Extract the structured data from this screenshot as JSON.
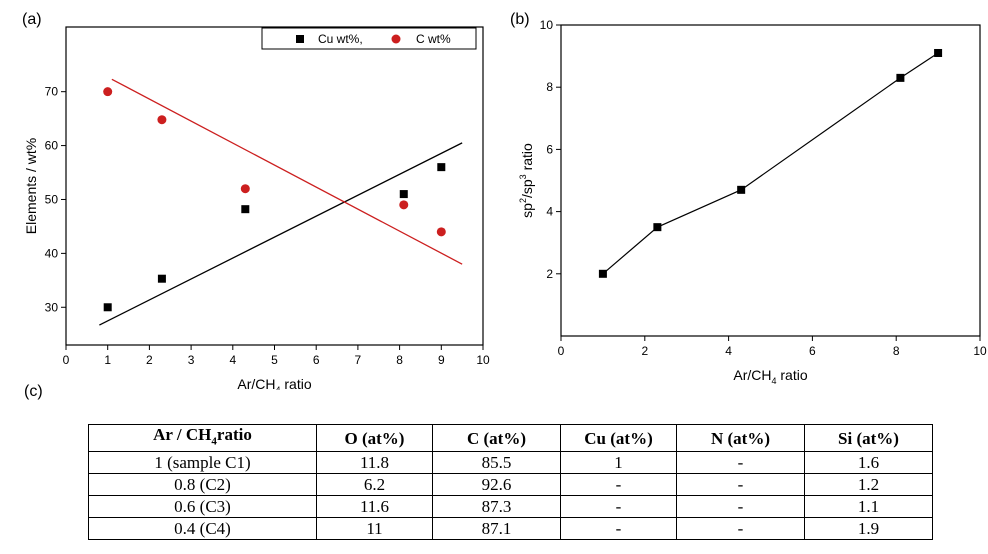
{
  "chart_data": [
    {
      "panel": "(a)",
      "type": "scatter",
      "xlabel": "Ar/CH",
      "xlabel_sub": "4",
      "xlabel_tail": " ratio",
      "ylabel": "Elements / wt%",
      "xlim": [
        0,
        10
      ],
      "ylim": [
        23,
        82
      ],
      "xticks": [
        0,
        1,
        2,
        3,
        4,
        5,
        6,
        7,
        8,
        9,
        10
      ],
      "yticks": [
        30,
        40,
        50,
        60,
        70
      ],
      "legend_position": "top-right",
      "series": [
        {
          "name": "Cu wt%,",
          "marker": "square",
          "color": "#000000",
          "x": [
            1,
            2.3,
            4.3,
            8.1,
            9
          ],
          "y": [
            30,
            35.3,
            48.2,
            51,
            56
          ],
          "fit": {
            "x": [
              0.8,
              9.5
            ],
            "y": [
              26.7,
              60.5
            ],
            "color": "#000000"
          }
        },
        {
          "name": "C wt%",
          "marker": "circle",
          "color": "#cc1f1f",
          "x": [
            1,
            2.3,
            4.3,
            8.1,
            9
          ],
          "y": [
            70,
            64.8,
            52,
            49,
            44
          ],
          "fit": {
            "x": [
              1.1,
              9.5
            ],
            "y": [
              72.3,
              38
            ],
            "color": "#cc1f1f"
          }
        }
      ]
    },
    {
      "panel": "(b)",
      "type": "line",
      "xlabel": "Ar/CH",
      "xlabel_sub": "4",
      "xlabel_tail": " ratio",
      "ylabel_parts": [
        "sp",
        "2",
        "/sp",
        "3",
        " ratio"
      ],
      "xlim": [
        0,
        10
      ],
      "ylim": [
        0,
        10
      ],
      "xticks": [
        0,
        2,
        4,
        6,
        8,
        10
      ],
      "yticks": [
        2,
        4,
        6,
        8,
        10
      ],
      "series": [
        {
          "marker": "square",
          "color": "#000000",
          "x": [
            1,
            2.3,
            4.3,
            8.1,
            9
          ],
          "y": [
            2,
            3.5,
            4.7,
            8.3,
            9.1
          ]
        }
      ]
    }
  ],
  "panel_c": {
    "label": "(c)",
    "headers": [
      {
        "main": "Ar / CH",
        "sub": "4",
        "tail": "ratio"
      },
      {
        "main": "O (at%)",
        "sub": "",
        "tail": ""
      },
      {
        "main": "C (at%)",
        "sub": "",
        "tail": ""
      },
      {
        "main": "Cu (at%)",
        "sub": "",
        "tail": ""
      },
      {
        "main": "N (at%)",
        "sub": "",
        "tail": ""
      },
      {
        "main": "Si (at%)",
        "sub": "",
        "tail": ""
      }
    ],
    "rows": [
      [
        "1 (sample C1)",
        "11.8",
        "85.5",
        "1",
        "-",
        "1.6"
      ],
      [
        "0.8 (C2)",
        "6.2",
        "92.6",
        "-",
        "-",
        "1.2"
      ],
      [
        "0.6 (C3)",
        "11.6",
        "87.3",
        "-",
        "-",
        "1.1"
      ],
      [
        "0.4 (C4)",
        "11",
        "87.1",
        "-",
        "-",
        "1.9"
      ]
    ]
  }
}
